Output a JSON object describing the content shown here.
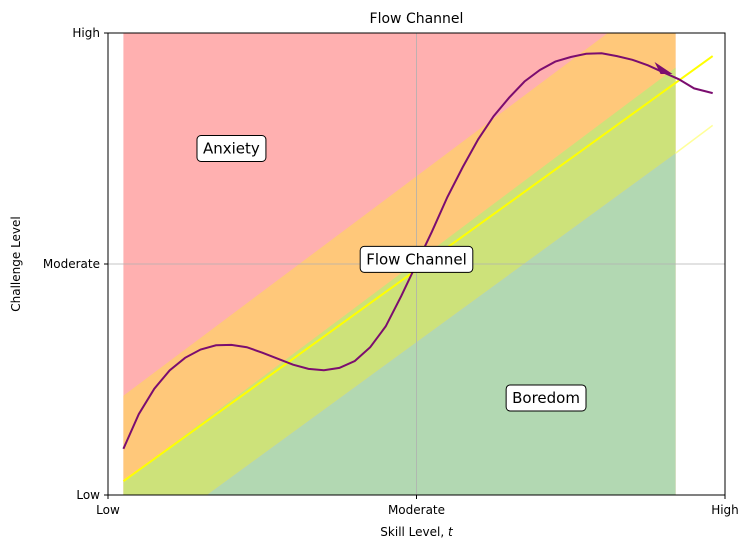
{
  "chart_data": {
    "type": "area",
    "title": "Flow Channel",
    "xlabel": "Skill Level,",
    "xlabel_var": "t",
    "ylabel": "Challenge Level",
    "xlim": [
      0,
      10
    ],
    "ylim": [
      0,
      10
    ],
    "x_ticks": [
      {
        "value": 0,
        "label": "Low"
      },
      {
        "value": 5,
        "label": "Moderate"
      },
      {
        "value": 10,
        "label": "High"
      }
    ],
    "y_ticks": [
      {
        "value": 0,
        "label": "Low"
      },
      {
        "value": 5,
        "label": "Moderate"
      },
      {
        "value": 10,
        "label": "High"
      }
    ],
    "grid": true,
    "regions": [
      {
        "label": "Anxiety",
        "color": "#ffb0b0",
        "label_x": 2.0,
        "label_y": 7.5
      },
      {
        "label": "Flow Channel",
        "color": "#ffc87a",
        "label_x": 5.0,
        "label_y": 5.1
      },
      {
        "label": "Boredom",
        "color": "#b2d8b2",
        "label_x": 7.1,
        "label_y": 2.1
      }
    ],
    "overlay_band_color": "#cde27a",
    "diagonal_line": {
      "x": [
        0.25,
        9.8
      ],
      "y": [
        0.3,
        9.5
      ],
      "color": "#ffff00"
    },
    "faint_line": {
      "x": [
        9.2,
        9.8
      ],
      "y": [
        7.4,
        8.0
      ],
      "color": "#ffff99"
    },
    "path_series": {
      "color": "#7b0d6f",
      "x": [
        0.25,
        0.5,
        0.75,
        1.0,
        1.25,
        1.5,
        1.75,
        2.0,
        2.25,
        2.5,
        2.75,
        3.0,
        3.25,
        3.5,
        3.75,
        4.0,
        4.25,
        4.5,
        4.75,
        5.0,
        5.25,
        5.5,
        5.75,
        6.0,
        6.25,
        6.5,
        6.75,
        7.0,
        7.25,
        7.5,
        7.75,
        8.0,
        8.25,
        8.5,
        8.75,
        9.0,
        9.25,
        9.5,
        9.8
      ],
      "y": [
        1.0,
        1.75,
        2.3,
        2.7,
        2.97,
        3.15,
        3.24,
        3.25,
        3.2,
        3.08,
        2.95,
        2.82,
        2.73,
        2.7,
        2.75,
        2.9,
        3.2,
        3.65,
        4.3,
        5.0,
        5.7,
        6.45,
        7.1,
        7.7,
        8.2,
        8.6,
        8.95,
        9.2,
        9.38,
        9.48,
        9.55,
        9.56,
        9.5,
        9.42,
        9.3,
        9.15,
        9.0,
        8.8,
        8.7
      ]
    }
  }
}
